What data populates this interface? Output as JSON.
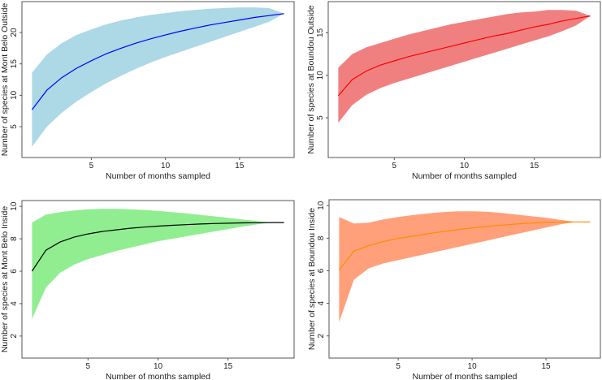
{
  "chart_data": [
    {
      "type": "area",
      "id": "mont-belo-outside",
      "xlabel": "Number of months sampled",
      "ylabel": "Number of species at Mont Belo Outside",
      "x": [
        1,
        2,
        3,
        4,
        5,
        6,
        7,
        8,
        9,
        10,
        11,
        12,
        13,
        14,
        15,
        16,
        17,
        18
      ],
      "xlim": [
        1,
        18
      ],
      "ylim": [
        1,
        24
      ],
      "xticks": [
        5,
        10,
        15
      ],
      "yticks": [
        5,
        10,
        15,
        20
      ],
      "fill_color": "#ADD8E6",
      "line_color": "#0000FF",
      "series": [
        {
          "name": "mean",
          "values": [
            7.7,
            10.8,
            12.8,
            14.3,
            15.5,
            16.6,
            17.5,
            18.3,
            19.0,
            19.6,
            20.2,
            20.7,
            21.2,
            21.6,
            22.0,
            22.4,
            22.7,
            23.0
          ]
        },
        {
          "name": "upper",
          "values": [
            13.6,
            16.5,
            18.3,
            19.6,
            20.5,
            21.3,
            21.9,
            22.4,
            22.8,
            23.1,
            23.4,
            23.6,
            23.8,
            23.9,
            24.0,
            24.0,
            23.9,
            23.0
          ]
        },
        {
          "name": "lower",
          "values": [
            1.8,
            5.0,
            7.2,
            9.0,
            10.5,
            11.9,
            13.1,
            14.2,
            15.2,
            16.1,
            16.9,
            17.7,
            18.5,
            19.3,
            20.1,
            20.9,
            21.7,
            23.0
          ]
        }
      ]
    },
    {
      "type": "area",
      "id": "boundou-outside",
      "xlabel": "Number of months sampled",
      "ylabel": "Number of species at Boundou Outside",
      "x": [
        1,
        2,
        3,
        4,
        5,
        6,
        7,
        8,
        9,
        10,
        11,
        12,
        13,
        14,
        15,
        16,
        17,
        18,
        19
      ],
      "xlim": [
        1,
        19
      ],
      "ylim": [
        1,
        18
      ],
      "xticks": [
        5,
        10,
        15
      ],
      "yticks": [
        5,
        10,
        15
      ],
      "fill_color": "#F08080",
      "line_color": "#FF0000",
      "series": [
        {
          "name": "mean",
          "values": [
            7.6,
            9.5,
            10.5,
            11.2,
            11.7,
            12.2,
            12.6,
            13.0,
            13.4,
            13.8,
            14.2,
            14.6,
            14.9,
            15.3,
            15.7,
            16.0,
            16.4,
            16.7,
            17.0
          ]
        },
        {
          "name": "upper",
          "values": [
            10.9,
            12.5,
            13.3,
            13.8,
            14.3,
            14.8,
            15.2,
            15.6,
            16.0,
            16.3,
            16.6,
            16.9,
            17.2,
            17.4,
            17.5,
            17.7,
            17.7,
            17.6,
            17.0
          ]
        },
        {
          "name": "lower",
          "values": [
            4.4,
            6.5,
            7.7,
            8.5,
            9.1,
            9.6,
            10.1,
            10.6,
            11.1,
            11.6,
            12.1,
            12.6,
            13.1,
            13.6,
            14.1,
            14.6,
            15.2,
            15.9,
            17.0
          ]
        }
      ]
    },
    {
      "type": "area",
      "id": "mont-belo-inside",
      "xlabel": "Number of months sampled",
      "ylabel": "Number of species at Mont Belo Inside",
      "x": [
        1,
        2,
        3,
        4,
        5,
        6,
        7,
        8,
        9,
        10,
        11,
        12,
        13,
        14,
        15,
        16,
        17,
        18,
        19
      ],
      "xlim": [
        1,
        19
      ],
      "ylim": [
        1,
        10
      ],
      "xticks": [
        5,
        10,
        15
      ],
      "yticks": [
        2,
        4,
        6,
        8,
        10
      ],
      "fill_color": "#90EE90",
      "line_color": "#000000",
      "series": [
        {
          "name": "mean",
          "values": [
            6.0,
            7.3,
            7.8,
            8.1,
            8.3,
            8.45,
            8.55,
            8.65,
            8.72,
            8.78,
            8.83,
            8.87,
            8.91,
            8.94,
            8.96,
            8.98,
            8.99,
            9.0,
            9.0
          ]
        },
        {
          "name": "upper",
          "values": [
            9.0,
            9.5,
            9.65,
            9.75,
            9.82,
            9.85,
            9.85,
            9.82,
            9.78,
            9.72,
            9.65,
            9.57,
            9.48,
            9.39,
            9.3,
            9.2,
            9.1,
            9.0,
            9.0
          ]
        },
        {
          "name": "lower",
          "values": [
            3.05,
            5.0,
            5.9,
            6.4,
            6.75,
            7.0,
            7.25,
            7.45,
            7.65,
            7.85,
            8.0,
            8.15,
            8.3,
            8.45,
            8.6,
            8.75,
            8.88,
            9.0,
            9.0
          ]
        }
      ]
    },
    {
      "type": "area",
      "id": "boundou-inside",
      "xlabel": "Number of months sampled",
      "ylabel": "Number of species at Boundou Inside",
      "x": [
        1,
        2,
        3,
        4,
        5,
        6,
        7,
        8,
        9,
        10,
        11,
        12,
        13,
        14,
        15,
        16,
        17,
        18
      ],
      "xlim": [
        1,
        18
      ],
      "ylim": [
        1,
        10
      ],
      "xticks": [
        5,
        10,
        15
      ],
      "yticks": [
        2,
        4,
        6,
        8,
        10
      ],
      "fill_color": "#FFA07A",
      "line_color": "#FF8C00",
      "series": [
        {
          "name": "mean",
          "values": [
            6.05,
            7.2,
            7.55,
            7.8,
            7.98,
            8.12,
            8.27,
            8.4,
            8.52,
            8.63,
            8.72,
            8.8,
            8.87,
            8.93,
            8.97,
            8.99,
            9.0,
            9.0
          ]
        },
        {
          "name": "upper",
          "values": [
            9.3,
            8.9,
            8.95,
            9.15,
            9.3,
            9.42,
            9.52,
            9.6,
            9.65,
            9.65,
            9.62,
            9.55,
            9.45,
            9.35,
            9.25,
            9.12,
            9.0,
            9.0
          ]
        },
        {
          "name": "lower",
          "values": [
            2.85,
            5.45,
            6.15,
            6.45,
            6.65,
            6.85,
            7.05,
            7.25,
            7.45,
            7.65,
            7.85,
            8.05,
            8.25,
            8.45,
            8.65,
            8.85,
            9.0,
            9.0
          ]
        }
      ]
    }
  ]
}
